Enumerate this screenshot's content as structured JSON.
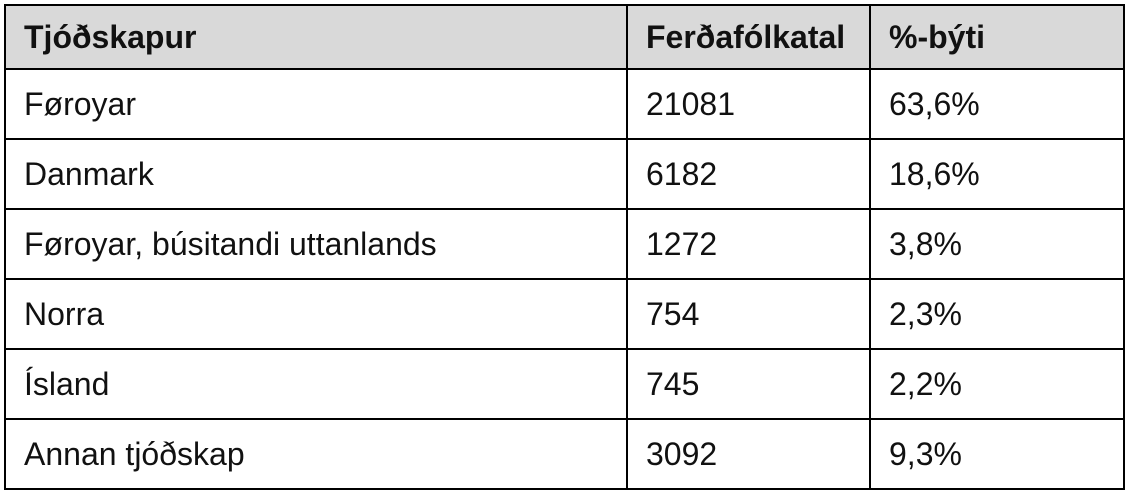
{
  "table": {
    "header": [
      "Tjóðskapur",
      "Ferðafólkatal",
      "%-býti"
    ],
    "rows": [
      [
        "Føroyar",
        "21081",
        "63,6%"
      ],
      [
        "Danmark",
        "6182",
        "18,6%"
      ],
      [
        "Føroyar, búsitandi uttanlands",
        "1272",
        "3,8%"
      ],
      [
        "Norra",
        "754",
        "2,3%"
      ],
      [
        "Ísland",
        "745",
        "2,2%"
      ],
      [
        "Annan tjóðskap",
        "3092",
        "9,3%"
      ]
    ]
  }
}
